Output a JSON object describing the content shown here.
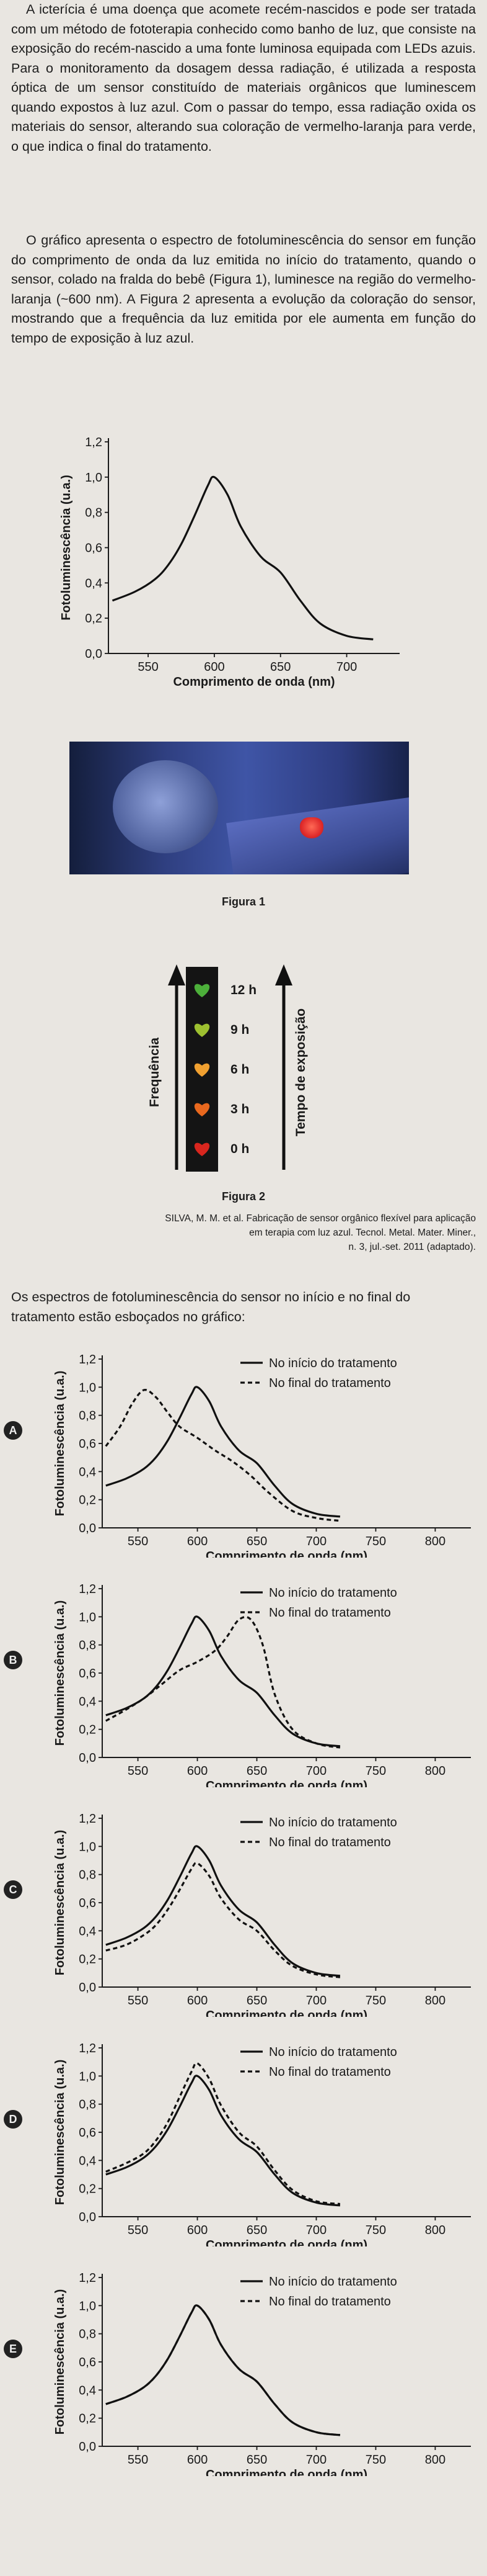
{
  "text": {
    "p1": "A icterícia é uma doença que acomete recém-nascidos e pode ser tratada com um método de fototerapia conhecido como banho de luz, que consiste na exposição do recém-nascido a uma fonte luminosa equipada com LEDs azuis. Para o monitoramento da dosagem dessa radiação, é utilizada a resposta óptica de um sensor constituído de materiais orgânicos que luminescem quando expostos à luz azul. Com o passar do tempo, essa radiação oxida os materiais do sensor, alterando sua coloração de vermelho-laranja para verde, o que indica o final do tratamento.",
    "p2": "O gráfico apresenta o espectro de fotoluminescência do sensor em função do comprimento de onda da luz emitida no início do tratamento, quando o sensor, colado na fralda do bebê (Figura 1), luminesce na região do vermelho-laranja (~600 nm). A Figura 2 apresenta a evolução da coloração do sensor, mostrando que a frequência da luz emitida por ele aumenta em função do tempo de exposição à luz azul.",
    "fig1_caption": "Figura 1",
    "fig2_caption": "Figura 2",
    "source_line1": "SILVA, M. M. et al. Fabricação de sensor orgânico flexível para aplicação",
    "source_line2": "em terapia com luz azul. Tecnol. Metal. Mater. Miner.,",
    "source_line3": "n. 3, jul.-set. 2011 (adaptado).",
    "intro": "Os espectros de fotoluminescência do sensor no início e no final do tratamento estão esboçados no gráfico:"
  },
  "figure2": {
    "times": [
      "12 h",
      "9 h",
      "6 h",
      "3 h",
      "0 h"
    ],
    "heart_colors": [
      "#4caf3a",
      "#9dc030",
      "#f0a030",
      "#e8681e",
      "#d8261e"
    ],
    "left_label": "Frequência",
    "right_label": "Tempo de exposição"
  },
  "options": [
    "A",
    "B",
    "C",
    "D",
    "E"
  ],
  "chart_data": [
    {
      "type": "line",
      "ylabel": "Fotoluminescência (u.a.)",
      "xlabel": "Comprimento de onda (nm)",
      "xticks": [
        550,
        600,
        650,
        700
      ],
      "yticks": [
        "0,0",
        "0,2",
        "0,4",
        "0,6",
        "0,8",
        "1,0",
        "1,2"
      ],
      "xlim": [
        520,
        740
      ],
      "ylim": [
        0,
        1.2
      ],
      "series": [
        {
          "x": [
            523,
            540,
            555,
            565,
            575,
            585,
            595,
            600,
            610,
            620,
            635,
            650,
            665,
            680,
            700,
            720
          ],
          "values": [
            0.3,
            0.35,
            0.42,
            0.5,
            0.62,
            0.78,
            0.95,
            1.0,
            0.9,
            0.72,
            0.55,
            0.46,
            0.3,
            0.17,
            0.1,
            0.08
          ]
        }
      ]
    },
    {
      "type": "line",
      "option": "A",
      "ylabel": "Fotoluminescência (u.a.)",
      "xlabel": "Comprimento de onda (nm)",
      "xticks": [
        550,
        600,
        650,
        700,
        750,
        800
      ],
      "yticks": [
        "0,0",
        "0,2",
        "0,4",
        "0,6",
        "0,8",
        "1,0",
        "1,2"
      ],
      "xlim": [
        520,
        830
      ],
      "ylim": [
        0,
        1.2
      ],
      "series": [
        {
          "name": "No início do tratamento",
          "dash": false,
          "x": [
            523,
            540,
            555,
            565,
            575,
            585,
            595,
            600,
            610,
            620,
            635,
            650,
            665,
            680,
            700,
            720
          ],
          "values": [
            0.3,
            0.35,
            0.42,
            0.5,
            0.62,
            0.78,
            0.95,
            1.0,
            0.9,
            0.72,
            0.55,
            0.46,
            0.3,
            0.17,
            0.1,
            0.08
          ]
        },
        {
          "name": "No final do tratamento",
          "dash": true,
          "x": [
            523,
            535,
            545,
            555,
            565,
            575,
            585,
            600,
            615,
            630,
            645,
            660,
            680,
            700,
            720
          ],
          "values": [
            0.58,
            0.72,
            0.88,
            0.98,
            0.93,
            0.82,
            0.72,
            0.64,
            0.55,
            0.47,
            0.37,
            0.25,
            0.12,
            0.07,
            0.05
          ]
        }
      ]
    },
    {
      "type": "line",
      "option": "B",
      "ylabel": "Fotoluminescência (u.a.)",
      "xlabel": "Comprimento de onda (nm)",
      "xticks": [
        550,
        600,
        650,
        700,
        750,
        800
      ],
      "yticks": [
        "0,0",
        "0,2",
        "0,4",
        "0,6",
        "0,8",
        "1,0",
        "1,2"
      ],
      "xlim": [
        520,
        830
      ],
      "ylim": [
        0,
        1.2
      ],
      "series": [
        {
          "name": "No início do tratamento",
          "dash": false,
          "x": [
            523,
            540,
            555,
            565,
            575,
            585,
            595,
            600,
            610,
            620,
            635,
            650,
            665,
            680,
            700,
            720
          ],
          "values": [
            0.3,
            0.35,
            0.42,
            0.5,
            0.62,
            0.78,
            0.95,
            1.0,
            0.9,
            0.72,
            0.55,
            0.46,
            0.3,
            0.17,
            0.1,
            0.08
          ]
        },
        {
          "name": "No final do tratamento",
          "dash": true,
          "x": [
            523,
            540,
            555,
            570,
            585,
            600,
            615,
            625,
            635,
            645,
            655,
            665,
            680,
            700,
            720
          ],
          "values": [
            0.26,
            0.34,
            0.42,
            0.52,
            0.62,
            0.68,
            0.76,
            0.86,
            0.98,
            0.98,
            0.8,
            0.45,
            0.2,
            0.1,
            0.07
          ]
        }
      ]
    },
    {
      "type": "line",
      "option": "C",
      "ylabel": "Fotoluminescência (u.a.)",
      "xlabel": "Comprimento de onda (nm)",
      "xticks": [
        550,
        600,
        650,
        700,
        750,
        800
      ],
      "yticks": [
        "0,0",
        "0,2",
        "0,4",
        "0,6",
        "0,8",
        "1,0",
        "1,2"
      ],
      "xlim": [
        520,
        830
      ],
      "ylim": [
        0,
        1.2
      ],
      "series": [
        {
          "name": "No início do tratamento",
          "dash": false,
          "x": [
            523,
            540,
            555,
            565,
            575,
            585,
            595,
            600,
            610,
            620,
            635,
            650,
            665,
            680,
            700,
            720
          ],
          "values": [
            0.3,
            0.35,
            0.42,
            0.5,
            0.62,
            0.78,
            0.95,
            1.0,
            0.9,
            0.72,
            0.55,
            0.46,
            0.3,
            0.17,
            0.1,
            0.08
          ]
        },
        {
          "name": "No final do tratamento",
          "dash": true,
          "x": [
            523,
            540,
            555,
            565,
            575,
            585,
            595,
            600,
            610,
            620,
            635,
            650,
            665,
            680,
            700,
            720
          ],
          "values": [
            0.26,
            0.3,
            0.37,
            0.44,
            0.55,
            0.69,
            0.84,
            0.88,
            0.79,
            0.63,
            0.48,
            0.4,
            0.26,
            0.15,
            0.09,
            0.07
          ]
        }
      ]
    },
    {
      "type": "line",
      "option": "D",
      "ylabel": "Fotoluminescência (u.a.)",
      "xlabel": "Comprimento de onda (nm)",
      "xticks": [
        550,
        600,
        650,
        700,
        750,
        800
      ],
      "yticks": [
        "0,0",
        "0,2",
        "0,4",
        "0,6",
        "0,8",
        "1,0",
        "1,2"
      ],
      "xlim": [
        520,
        830
      ],
      "ylim": [
        0,
        1.2
      ],
      "series": [
        {
          "name": "No início do tratamento",
          "dash": false,
          "x": [
            523,
            540,
            555,
            565,
            575,
            585,
            595,
            600,
            610,
            620,
            635,
            650,
            665,
            680,
            700,
            720
          ],
          "values": [
            0.3,
            0.35,
            0.42,
            0.5,
            0.62,
            0.78,
            0.95,
            1.0,
            0.9,
            0.72,
            0.55,
            0.46,
            0.3,
            0.17,
            0.1,
            0.08
          ]
        },
        {
          "name": "No final do tratamento",
          "dash": true,
          "x": [
            523,
            540,
            555,
            565,
            575,
            585,
            595,
            600,
            610,
            620,
            635,
            650,
            665,
            680,
            700,
            720
          ],
          "values": [
            0.32,
            0.38,
            0.45,
            0.54,
            0.67,
            0.85,
            1.03,
            1.09,
            0.98,
            0.79,
            0.6,
            0.5,
            0.33,
            0.19,
            0.11,
            0.09
          ]
        }
      ]
    },
    {
      "type": "line",
      "option": "E",
      "ylabel": "Fotoluminescência (u.a.)",
      "xlabel": "Comprimento de onda (nm)",
      "xticks": [
        550,
        600,
        650,
        700,
        750,
        800
      ],
      "yticks": [
        "0,0",
        "0,2",
        "0,4",
        "0,6",
        "0,8",
        "1,0",
        "1,2"
      ],
      "xlim": [
        520,
        830
      ],
      "ylim": [
        0,
        1.2
      ],
      "series": [
        {
          "name": "No início do tratamento",
          "dash": false,
          "x": [
            523,
            540,
            555,
            565,
            575,
            585,
            595,
            600,
            610,
            620,
            635,
            650,
            665,
            680,
            700,
            720
          ],
          "values": [
            0.3,
            0.35,
            0.42,
            0.5,
            0.62,
            0.78,
            0.95,
            1.0,
            0.9,
            0.72,
            0.55,
            0.46,
            0.3,
            0.17,
            0.1,
            0.08
          ]
        },
        {
          "name": "No final do tratamento",
          "dash": true,
          "x": [
            523,
            540,
            555,
            565,
            575,
            585,
            595,
            600,
            610,
            620,
            635,
            650,
            665,
            680,
            700,
            720
          ],
          "values": [
            0.3,
            0.35,
            0.42,
            0.5,
            0.62,
            0.78,
            0.95,
            1.0,
            0.9,
            0.72,
            0.55,
            0.46,
            0.3,
            0.17,
            0.1,
            0.08
          ]
        }
      ]
    }
  ]
}
